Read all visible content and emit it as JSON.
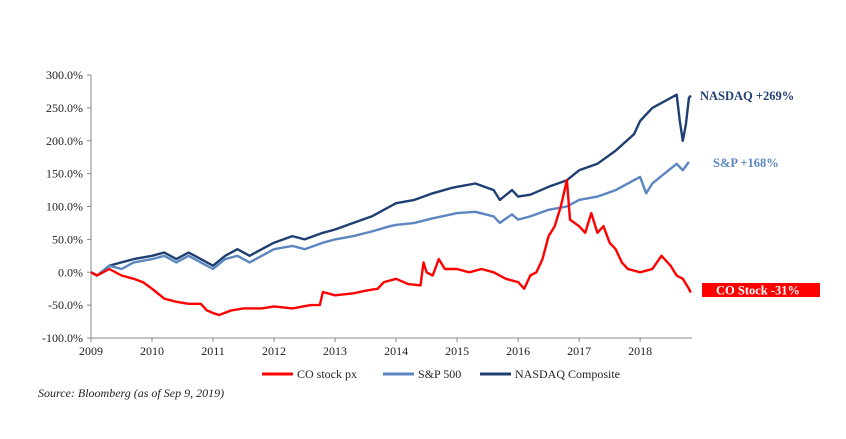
{
  "chart_data": {
    "type": "line",
    "ylim": [
      -100,
      300
    ],
    "xlim": [
      2009,
      2018.85
    ],
    "y_ticks": [
      {
        "value": 300,
        "label": "300.0%"
      },
      {
        "value": 250,
        "label": "250.0%"
      },
      {
        "value": 200,
        "label": "200.0%"
      },
      {
        "value": 150,
        "label": "150.0%"
      },
      {
        "value": 100,
        "label": "100.0%"
      },
      {
        "value": 50,
        "label": "50.0%"
      },
      {
        "value": 0,
        "label": "0.0%"
      },
      {
        "value": -50,
        "label": "-50.0%"
      },
      {
        "value": -100,
        "label": "-100.0%"
      }
    ],
    "x_ticks": [
      "2009",
      "2010",
      "2011",
      "2012",
      "2013",
      "2014",
      "2015",
      "2016",
      "2017",
      "2018"
    ],
    "grid": false,
    "legend_position": "bottom",
    "series": [
      {
        "name": "CO stock px",
        "color": "#ff0000",
        "points": [
          [
            2009,
            0
          ],
          [
            2009.1,
            -5
          ],
          [
            2009.3,
            5
          ],
          [
            2009.5,
            -5
          ],
          [
            2009.7,
            -10
          ],
          [
            2009.85,
            -15
          ],
          [
            2010,
            -25
          ],
          [
            2010.2,
            -40
          ],
          [
            2010.4,
            -45
          ],
          [
            2010.6,
            -48
          ],
          [
            2010.8,
            -48
          ],
          [
            2010.9,
            -58
          ],
          [
            2011,
            -62
          ],
          [
            2011.1,
            -65
          ],
          [
            2011.3,
            -58
          ],
          [
            2011.5,
            -55
          ],
          [
            2011.8,
            -55
          ],
          [
            2012,
            -52
          ],
          [
            2012.3,
            -55
          ],
          [
            2012.6,
            -50
          ],
          [
            2012.75,
            -50
          ],
          [
            2012.8,
            -30
          ],
          [
            2013,
            -35
          ],
          [
            2013.3,
            -32
          ],
          [
            2013.5,
            -28
          ],
          [
            2013.7,
            -25
          ],
          [
            2013.8,
            -15
          ],
          [
            2014,
            -10
          ],
          [
            2014.2,
            -18
          ],
          [
            2014.4,
            -20
          ],
          [
            2014.45,
            15
          ],
          [
            2014.5,
            0
          ],
          [
            2014.6,
            -5
          ],
          [
            2014.7,
            20
          ],
          [
            2014.8,
            5
          ],
          [
            2015,
            5
          ],
          [
            2015.2,
            0
          ],
          [
            2015.4,
            5
          ],
          [
            2015.6,
            0
          ],
          [
            2015.8,
            -10
          ],
          [
            2016,
            -15
          ],
          [
            2016.1,
            -25
          ],
          [
            2016.2,
            -5
          ],
          [
            2016.3,
            0
          ],
          [
            2016.4,
            20
          ],
          [
            2016.5,
            55
          ],
          [
            2016.6,
            70
          ],
          [
            2016.7,
            100
          ],
          [
            2016.8,
            140
          ],
          [
            2016.85,
            80
          ],
          [
            2017,
            70
          ],
          [
            2017.1,
            60
          ],
          [
            2017.2,
            90
          ],
          [
            2017.3,
            60
          ],
          [
            2017.4,
            70
          ],
          [
            2017.5,
            45
          ],
          [
            2017.6,
            35
          ],
          [
            2017.7,
            15
          ],
          [
            2017.8,
            5
          ],
          [
            2018,
            0
          ],
          [
            2018.2,
            5
          ],
          [
            2018.35,
            25
          ],
          [
            2018.5,
            10
          ],
          [
            2018.6,
            -5
          ],
          [
            2018.7,
            -10
          ],
          [
            2018.8,
            -25
          ],
          [
            2018.83,
            -31
          ]
        ]
      },
      {
        "name": "S&P 500",
        "color": "#5b86bf",
        "points": [
          [
            2009,
            0
          ],
          [
            2009.1,
            -5
          ],
          [
            2009.3,
            10
          ],
          [
            2009.5,
            5
          ],
          [
            2009.7,
            15
          ],
          [
            2010,
            20
          ],
          [
            2010.2,
            25
          ],
          [
            2010.4,
            15
          ],
          [
            2010.6,
            25
          ],
          [
            2010.8,
            15
          ],
          [
            2011,
            5
          ],
          [
            2011.2,
            20
          ],
          [
            2011.4,
            25
          ],
          [
            2011.6,
            15
          ],
          [
            2011.8,
            25
          ],
          [
            2012,
            35
          ],
          [
            2012.3,
            40
          ],
          [
            2012.5,
            35
          ],
          [
            2012.8,
            45
          ],
          [
            2013,
            50
          ],
          [
            2013.3,
            55
          ],
          [
            2013.6,
            62
          ],
          [
            2013.9,
            70
          ],
          [
            2014,
            72
          ],
          [
            2014.3,
            75
          ],
          [
            2014.6,
            82
          ],
          [
            2014.9,
            88
          ],
          [
            2015,
            90
          ],
          [
            2015.3,
            92
          ],
          [
            2015.6,
            85
          ],
          [
            2015.7,
            75
          ],
          [
            2015.9,
            88
          ],
          [
            2016,
            80
          ],
          [
            2016.2,
            85
          ],
          [
            2016.5,
            95
          ],
          [
            2016.8,
            100
          ],
          [
            2017,
            110
          ],
          [
            2017.3,
            115
          ],
          [
            2017.6,
            125
          ],
          [
            2017.9,
            140
          ],
          [
            2018,
            145
          ],
          [
            2018.1,
            120
          ],
          [
            2018.2,
            135
          ],
          [
            2018.4,
            150
          ],
          [
            2018.6,
            165
          ],
          [
            2018.7,
            155
          ],
          [
            2018.8,
            168
          ]
        ]
      },
      {
        "name": "NASDAQ Composite",
        "color": "#1f3f72",
        "points": [
          [
            2009,
            0
          ],
          [
            2009.1,
            -5
          ],
          [
            2009.3,
            10
          ],
          [
            2009.5,
            15
          ],
          [
            2009.7,
            20
          ],
          [
            2010,
            25
          ],
          [
            2010.2,
            30
          ],
          [
            2010.4,
            20
          ],
          [
            2010.6,
            30
          ],
          [
            2010.8,
            20
          ],
          [
            2011,
            10
          ],
          [
            2011.2,
            25
          ],
          [
            2011.4,
            35
          ],
          [
            2011.6,
            25
          ],
          [
            2011.8,
            35
          ],
          [
            2012,
            45
          ],
          [
            2012.3,
            55
          ],
          [
            2012.5,
            50
          ],
          [
            2012.8,
            60
          ],
          [
            2013,
            65
          ],
          [
            2013.3,
            75
          ],
          [
            2013.6,
            85
          ],
          [
            2013.9,
            100
          ],
          [
            2014,
            105
          ],
          [
            2014.3,
            110
          ],
          [
            2014.6,
            120
          ],
          [
            2014.9,
            128
          ],
          [
            2015,
            130
          ],
          [
            2015.3,
            135
          ],
          [
            2015.6,
            125
          ],
          [
            2015.7,
            110
          ],
          [
            2015.9,
            125
          ],
          [
            2016,
            115
          ],
          [
            2016.2,
            118
          ],
          [
            2016.5,
            130
          ],
          [
            2016.8,
            140
          ],
          [
            2017,
            155
          ],
          [
            2017.3,
            165
          ],
          [
            2017.6,
            185
          ],
          [
            2017.9,
            210
          ],
          [
            2018,
            230
          ],
          [
            2018.2,
            250
          ],
          [
            2018.4,
            260
          ],
          [
            2018.6,
            270
          ],
          [
            2018.65,
            230
          ],
          [
            2018.7,
            200
          ],
          [
            2018.75,
            225
          ],
          [
            2018.8,
            265
          ],
          [
            2018.83,
            269
          ]
        ]
      }
    ],
    "annotations": [
      {
        "text": "NASDAQ +269%",
        "series": "NASDAQ Composite"
      },
      {
        "text": "S&P +168%",
        "series": "S&P 500"
      },
      {
        "text": "CO Stock -31%",
        "series": "CO stock px"
      }
    ],
    "source": "Source: Bloomberg (as of Sep 9, 2019)"
  }
}
